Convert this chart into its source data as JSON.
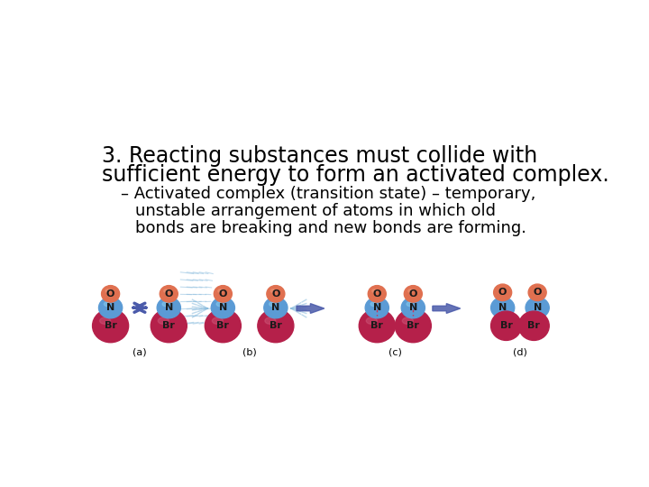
{
  "bg_color": "#ffffff",
  "title_line1": "3. Reacting substances must collide with",
  "title_line2": "sufficient energy to form an activated complex.",
  "sub_line1": "– Activated complex (transition state) – temporary,",
  "sub_line2": "unstable arrangement of atoms in which old",
  "sub_line3": "bonds are breaking and new bonds are forming.",
  "label_a": "(a)",
  "label_b": "(b)",
  "label_c": "(c)",
  "label_d": "(d)",
  "title_fontsize": 17,
  "sub_fontsize": 13,
  "label_fontsize": 8,
  "br_color": "#b5204a",
  "n_color": "#5b9bd5",
  "o_color": "#e07050",
  "arrow_color": "#4a5aaa",
  "text_color": "#000000",
  "motion_color": "#88bbdd"
}
